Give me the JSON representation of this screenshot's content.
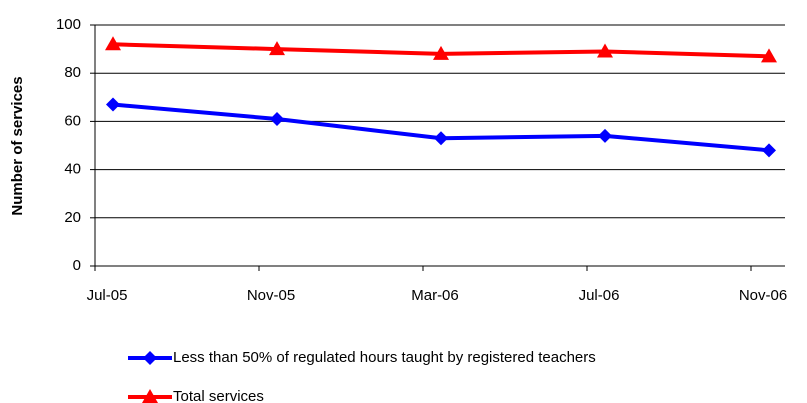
{
  "chart_data": {
    "type": "line",
    "y_label": "Number of services",
    "categories": [
      "Jul-05",
      "Nov-05",
      "Mar-06",
      "Jul-06",
      "Nov-06"
    ],
    "series": [
      {
        "name": "Less than 50% of regulated hours taught by registered teachers",
        "color": "#0000ff",
        "marker": "diamond",
        "values": [
          67,
          61,
          53,
          54,
          48
        ]
      },
      {
        "name": "Total services",
        "color": "#ff0000",
        "marker": "triangle",
        "values": [
          92,
          90,
          88,
          89,
          87
        ]
      }
    ],
    "ylim": [
      0,
      100
    ],
    "yticks": [
      0,
      20,
      40,
      60,
      80,
      100
    ],
    "grid": true
  }
}
